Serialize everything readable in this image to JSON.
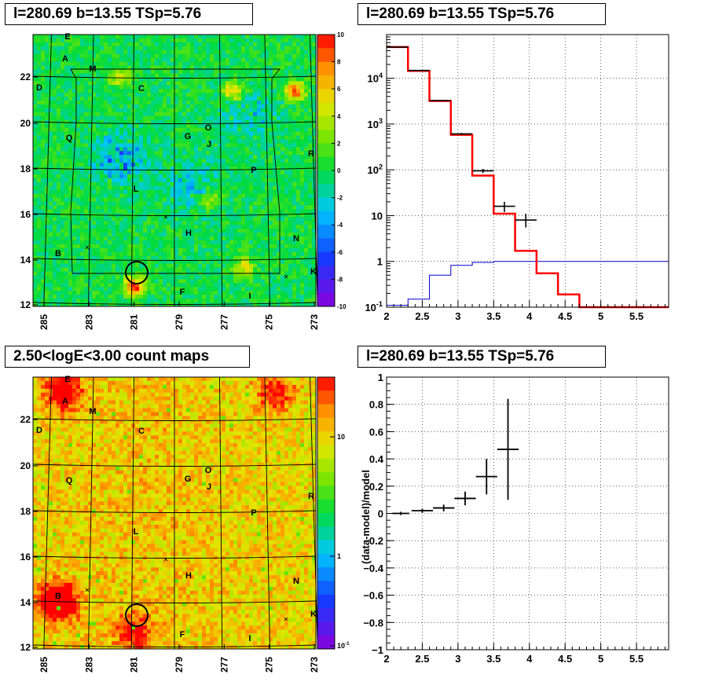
{
  "panels": {
    "tl_title": "l=280.69 b=13.55 TSp=5.76",
    "tr_title": "l=280.69 b=13.55 TSp=5.76",
    "bl_title": "2.50<logE<3.00 count maps",
    "br_title": "l=280.69 b=13.55 TSp=5.76"
  },
  "colors": {
    "data": "#000000",
    "model": "#ff0000",
    "background_model": "#0000cc"
  },
  "chart_data": [
    {
      "type": "heatmap",
      "title": "l=280.69 b=13.55 TSp=5.76",
      "colormap": "rainbow",
      "x_ticks": [
        "285",
        "283",
        "281",
        "279",
        "277",
        "275",
        "273"
      ],
      "y_ticks": [
        "12",
        "14",
        "16",
        "18",
        "20",
        "22"
      ],
      "colorbar_ticks": [
        "10",
        "8",
        "6",
        "4",
        "2",
        "0",
        "-2",
        "-4",
        "-6",
        "-8",
        "-10"
      ],
      "zlim": [
        -10,
        10
      ],
      "source_labels": [
        "E",
        "A",
        "M",
        "D",
        "C",
        "O",
        "G",
        "J",
        "Q",
        "R",
        "P",
        "L",
        "H",
        "N",
        "B",
        "K",
        "F",
        "I"
      ]
    },
    {
      "type": "line",
      "title": "l=280.69 b=13.55 TSp=5.76",
      "x_ticks": [
        "2",
        "2.5",
        "3",
        "3.5",
        "4",
        "4.5",
        "5",
        "5.5"
      ],
      "y_ticks": [
        "10^-1",
        "1",
        "10",
        "10^2",
        "10^3",
        "10^4"
      ],
      "xlim": [
        2,
        5.95
      ],
      "ylim": [
        0.1,
        90000
      ],
      "yscale": "log",
      "grid": true,
      "model_steps": {
        "edges": [
          2.0,
          2.3,
          2.6,
          2.9,
          3.2,
          3.5,
          3.8,
          4.1,
          4.4,
          4.7,
          5.0,
          5.3,
          5.6,
          5.95
        ],
        "values": [
          48000,
          14500,
          3200,
          580,
          75,
          11,
          1.7,
          0.55,
          0.19,
          0.1,
          0.1,
          0.1,
          0.1
        ]
      },
      "background_steps": {
        "edges": [
          2.0,
          2.3,
          2.6,
          2.9,
          3.2,
          3.5,
          3.8,
          4.1,
          4.4,
          4.7,
          5.0,
          5.3,
          5.6,
          5.95
        ],
        "values": [
          0.11,
          0.15,
          0.5,
          0.82,
          0.95,
          1.0,
          1.0,
          1.0,
          1.0,
          1.0,
          1.0,
          1.0,
          1.0
        ]
      },
      "data_points": [
        {
          "x": 2.15,
          "y": 48000,
          "xerr": 0.15,
          "lo": 47000,
          "hi": 49000
        },
        {
          "x": 2.45,
          "y": 14800,
          "xerr": 0.15,
          "lo": 14500,
          "hi": 15100
        },
        {
          "x": 2.75,
          "y": 3250,
          "xerr": 0.15,
          "lo": 3150,
          "hi": 3350
        },
        {
          "x": 3.05,
          "y": 610,
          "xerr": 0.15,
          "lo": 580,
          "hi": 640
        },
        {
          "x": 3.35,
          "y": 95,
          "xerr": 0.15,
          "lo": 85,
          "hi": 105
        },
        {
          "x": 3.65,
          "y": 16,
          "xerr": 0.15,
          "lo": 12,
          "hi": 20
        },
        {
          "x": 3.95,
          "y": 8,
          "xerr": 0.15,
          "lo": 5.5,
          "hi": 11
        }
      ]
    },
    {
      "type": "heatmap",
      "title": "2.50<logE<3.00 count maps",
      "colormap": "rainbow",
      "x_ticks": [
        "285",
        "283",
        "281",
        "279",
        "277",
        "275",
        "273"
      ],
      "y_ticks": [
        "12",
        "14",
        "16",
        "18",
        "20",
        "22"
      ],
      "colorbar_ticks": [
        "10",
        "1",
        "10^-1"
      ],
      "zscale": "log",
      "source_labels": [
        "E",
        "A",
        "M",
        "D",
        "C",
        "O",
        "G",
        "J",
        "Q",
        "R",
        "P",
        "L",
        "H",
        "N",
        "B",
        "K",
        "F",
        "I"
      ]
    },
    {
      "type": "scatter",
      "title": "l=280.69 b=13.55 TSp=5.76",
      "ylabel": "(data-model)/model",
      "x_ticks": [
        "2",
        "2.5",
        "3",
        "3.5",
        "4",
        "4.5",
        "5",
        "5.5"
      ],
      "y_ticks": [
        "1",
        "0.8",
        "0.6",
        "0.4",
        "0.2",
        "0",
        "-0.2",
        "-0.4",
        "-0.6",
        "-0.8",
        "-1"
      ],
      "xlim": [
        2,
        5.95
      ],
      "ylim": [
        -1,
        1
      ],
      "grid": true,
      "points": [
        {
          "x": 2.2,
          "y": 0.0,
          "xerr": 0.12,
          "yerr": 0.012
        },
        {
          "x": 2.5,
          "y": 0.02,
          "xerr": 0.15,
          "yerr": 0.015
        },
        {
          "x": 2.8,
          "y": 0.04,
          "xerr": 0.15,
          "yerr": 0.025
        },
        {
          "x": 3.1,
          "y": 0.11,
          "xerr": 0.15,
          "yerr": 0.05
        },
        {
          "x": 3.4,
          "y": 0.27,
          "xerr": 0.15,
          "yerr": 0.13
        },
        {
          "x": 3.7,
          "y": 0.47,
          "xerr": 0.15,
          "yerr": 0.37
        }
      ]
    }
  ]
}
